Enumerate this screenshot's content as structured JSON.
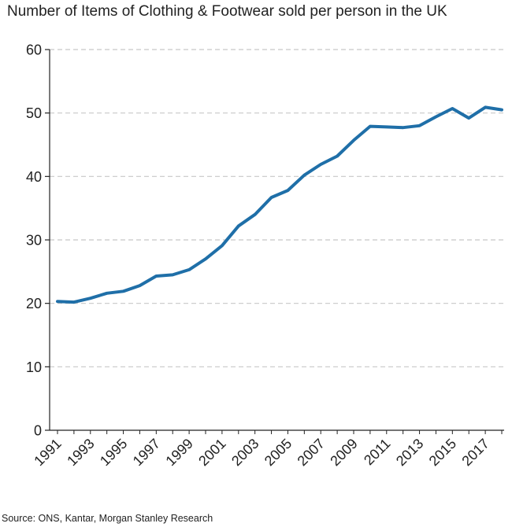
{
  "chart_data": {
    "type": "line",
    "title": "Number of Items of Clothing & Footwear sold per person in the UK",
    "xlabel": "",
    "ylabel": "",
    "ylim": [
      0,
      60
    ],
    "yticks": [
      0,
      10,
      20,
      30,
      40,
      50,
      60
    ],
    "xlim": [
      1991,
      2018
    ],
    "xticks": [
      1991,
      1993,
      1995,
      1997,
      1999,
      2001,
      2003,
      2005,
      2007,
      2009,
      2011,
      2013,
      2015,
      2017
    ],
    "grid": "horizontal dashed",
    "legend": "none",
    "series": [
      {
        "color": "#1f6fa8",
        "x": [
          1991,
          1992,
          1993,
          1994,
          1995,
          1996,
          1997,
          1998,
          1999,
          2000,
          2001,
          2002,
          2003,
          2004,
          2005,
          2006,
          2007,
          2008,
          2009,
          2010,
          2011,
          2012,
          2013,
          2014,
          2015,
          2016,
          2017,
          2018
        ],
        "values": [
          20.3,
          20.2,
          20.8,
          21.6,
          21.9,
          22.8,
          24.3,
          24.5,
          25.3,
          27.0,
          29.1,
          32.2,
          34.0,
          36.7,
          37.8,
          40.2,
          41.9,
          43.2,
          45.7,
          47.9,
          47.8,
          47.7,
          48.0,
          49.4,
          50.7,
          49.2,
          50.9,
          50.5
        ]
      }
    ],
    "source": "Source: ONS, Kantar, Morgan Stanley Research"
  }
}
